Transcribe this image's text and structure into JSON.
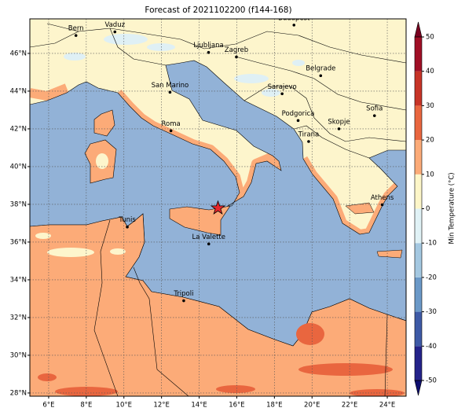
{
  "title": "Forecast of 2021102200 (f144-168)",
  "map": {
    "xlim": [
      5,
      25
    ],
    "ylim": [
      27.83,
      47.83
    ],
    "grid": true,
    "xticks": [
      {
        "value": 6,
        "label": "6°E"
      },
      {
        "value": 8,
        "label": "8°E"
      },
      {
        "value": 10,
        "label": "10°E"
      },
      {
        "value": 12,
        "label": "12°E"
      },
      {
        "value": 14,
        "label": "14°E"
      },
      {
        "value": 16,
        "label": "16°E"
      },
      {
        "value": 18,
        "label": "18°E"
      },
      {
        "value": 20,
        "label": "20°E"
      },
      {
        "value": 22,
        "label": "22°E"
      },
      {
        "value": 24,
        "label": "24°E"
      }
    ],
    "yticks": [
      {
        "value": 28,
        "label": "28°N"
      },
      {
        "value": 30,
        "label": "30°N"
      },
      {
        "value": 32,
        "label": "32°N"
      },
      {
        "value": 34,
        "label": "34°N"
      },
      {
        "value": 36,
        "label": "36°N"
      },
      {
        "value": 38,
        "label": "38°N"
      },
      {
        "value": 40,
        "label": "40°N"
      },
      {
        "value": 42,
        "label": "42°N"
      },
      {
        "value": 44,
        "label": "44°N"
      },
      {
        "value": 46,
        "label": "46°N"
      }
    ]
  },
  "cities": [
    {
      "name": "Bern",
      "lon": 7.45,
      "lat": 46.95
    },
    {
      "name": "Vaduz",
      "lon": 9.52,
      "lat": 47.14
    },
    {
      "name": "Budapest",
      "lon": 19.04,
      "lat": 47.5
    },
    {
      "name": "Ljubljana",
      "lon": 14.5,
      "lat": 46.05
    },
    {
      "name": "Zagreb",
      "lon": 15.98,
      "lat": 45.81
    },
    {
      "name": "Belgrade",
      "lon": 20.46,
      "lat": 44.82
    },
    {
      "name": "San Marino",
      "lon": 12.45,
      "lat": 43.94
    },
    {
      "name": "Sarajevo",
      "lon": 18.41,
      "lat": 43.86
    },
    {
      "name": "Sofia",
      "lon": 23.32,
      "lat": 42.7
    },
    {
      "name": "Podgorica",
      "lon": 19.26,
      "lat": 42.44
    },
    {
      "name": "Skopje",
      "lon": 21.43,
      "lat": 42.0
    },
    {
      "name": "Roma",
      "lon": 12.5,
      "lat": 41.9
    },
    {
      "name": "Tirana",
      "lon": 19.82,
      "lat": 41.33
    },
    {
      "name": "Athens",
      "lon": 23.73,
      "lat": 37.98
    },
    {
      "name": "Tunis",
      "lon": 10.18,
      "lat": 36.8
    },
    {
      "name": "La Valette",
      "lon": 14.51,
      "lat": 35.9
    },
    {
      "name": "Tripoli",
      "lon": 13.18,
      "lat": 32.89
    }
  ],
  "marker": {
    "lon": 15.0,
    "lat": 37.8,
    "color": "#e8262a"
  },
  "colorbar": {
    "label": "Min Temperature (°C)",
    "ticks": [
      -50,
      -40,
      -30,
      -20,
      -10,
      0,
      10,
      20,
      30,
      40,
      50
    ],
    "colors": [
      "#24238a",
      "#3e5aa6",
      "#6b99c8",
      "#a4c8e1",
      "#e0f2f6",
      "#fdf6c8",
      "#fcab78",
      "#e9663f",
      "#c73427",
      "#a00f25"
    ],
    "under_color": "#0f0f70",
    "over_color": "#7a0020"
  }
}
